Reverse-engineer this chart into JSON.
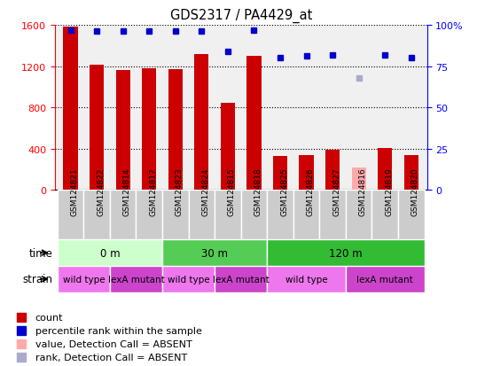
{
  "title": "GDS2317 / PA4429_at",
  "samples": [
    "GSM124821",
    "GSM124822",
    "GSM124814",
    "GSM124817",
    "GSM124823",
    "GSM124824",
    "GSM124815",
    "GSM124818",
    "GSM124825",
    "GSM124826",
    "GSM124827",
    "GSM124816",
    "GSM124819",
    "GSM124820"
  ],
  "counts": [
    1580,
    1210,
    1160,
    1175,
    1170,
    1320,
    840,
    1300,
    330,
    340,
    390,
    220,
    410,
    340
  ],
  "counts_absent": [
    false,
    false,
    false,
    false,
    false,
    false,
    false,
    false,
    false,
    false,
    false,
    true,
    false,
    false
  ],
  "percentile_ranks": [
    97,
    96,
    96,
    96,
    96,
    96,
    84,
    97,
    80,
    81,
    82,
    68,
    82,
    80
  ],
  "ranks_absent": [
    false,
    false,
    false,
    false,
    false,
    false,
    false,
    false,
    false,
    false,
    false,
    true,
    false,
    false
  ],
  "ylim_left": [
    0,
    1600
  ],
  "ylim_right": [
    0,
    100
  ],
  "yticks_left": [
    0,
    400,
    800,
    1200,
    1600
  ],
  "yticks_right": [
    0,
    25,
    50,
    75,
    100
  ],
  "bar_color": "#cc0000",
  "bar_color_absent": "#ffaaaa",
  "dot_color": "#0000cc",
  "dot_color_absent": "#aaaacc",
  "time_groups": [
    {
      "label": "0 m",
      "start": 0,
      "end": 4,
      "color": "#ccffcc"
    },
    {
      "label": "30 m",
      "start": 4,
      "end": 8,
      "color": "#55cc55"
    },
    {
      "label": "120 m",
      "start": 8,
      "end": 14,
      "color": "#33bb33"
    }
  ],
  "strain_groups": [
    {
      "label": "wild type",
      "start": 0,
      "end": 2,
      "color": "#ee77ee"
    },
    {
      "label": "lexA mutant",
      "start": 2,
      "end": 4,
      "color": "#cc44cc"
    },
    {
      "label": "wild type",
      "start": 4,
      "end": 6,
      "color": "#ee77ee"
    },
    {
      "label": "lexA mutant",
      "start": 6,
      "end": 8,
      "color": "#cc44cc"
    },
    {
      "label": "wild type",
      "start": 8,
      "end": 11,
      "color": "#ee77ee"
    },
    {
      "label": "lexA mutant",
      "start": 11,
      "end": 14,
      "color": "#cc44cc"
    }
  ],
  "legend_items": [
    {
      "label": "count",
      "color": "#cc0000"
    },
    {
      "label": "percentile rank within the sample",
      "color": "#0000cc"
    },
    {
      "label": "value, Detection Call = ABSENT",
      "color": "#ffaaaa"
    },
    {
      "label": "rank, Detection Call = ABSENT",
      "color": "#aaaacc"
    }
  ],
  "time_label": "time",
  "strain_label": "strain",
  "label_bg_color": "#cccccc"
}
